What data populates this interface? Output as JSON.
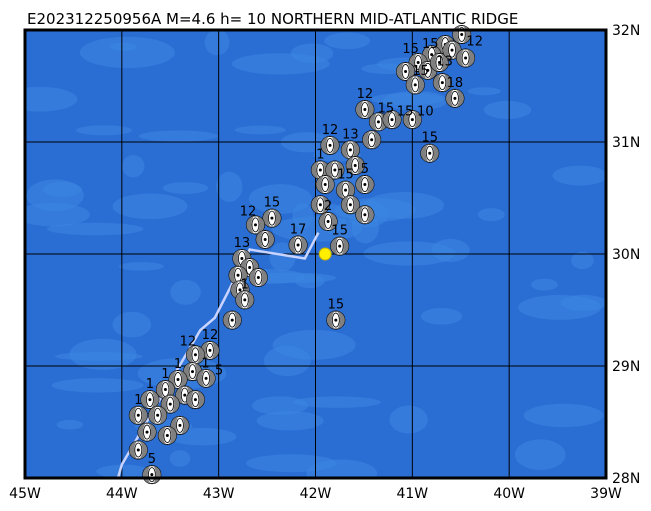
{
  "title": "E202312250956A M=4.6 h= 10 NORTHERN MID-ATLANTIC RIDGE",
  "map": {
    "lon_range": [
      -45,
      -39
    ],
    "lat_range": [
      28,
      32
    ],
    "lon_ticks": [
      {
        "v": -45,
        "label": "45W"
      },
      {
        "v": -44,
        "label": "44W"
      },
      {
        "v": -43,
        "label": "43W"
      },
      {
        "v": -42,
        "label": "42W"
      },
      {
        "v": -41,
        "label": "41W"
      },
      {
        "v": -40,
        "label": "40W"
      },
      {
        "v": -39,
        "label": "39W"
      }
    ],
    "lat_ticks": [
      {
        "v": 32,
        "label": "32N"
      },
      {
        "v": 31,
        "label": "31N"
      },
      {
        "v": 30,
        "label": "30N"
      },
      {
        "v": 29,
        "label": "29N"
      },
      {
        "v": 28,
        "label": "28N"
      }
    ],
    "grid": true,
    "colors": {
      "ocean": "#2a6ed4",
      "ocean_light": "#3d86e2",
      "grid": "#000000",
      "ridge": "#c8d4ff",
      "epicenter": "#ffee00",
      "mechanism_gray": "#808080"
    },
    "epicenter": {
      "lon": -41.9,
      "lat": 30.0
    },
    "ridge_line": [
      [
        -44.04,
        28.0
      ],
      [
        -44.0,
        28.12
      ],
      [
        -43.19,
        29.32
      ],
      [
        -43.04,
        29.43
      ],
      [
        -42.68,
        30.04
      ],
      [
        -42.11,
        29.96
      ],
      [
        -41.97,
        30.19
      ]
    ],
    "mechanisms": [
      {
        "lon": -40.49,
        "lat": 31.96,
        "label": "12"
      },
      {
        "lon": -40.66,
        "lat": 31.87,
        "label": "15"
      },
      {
        "lon": -40.8,
        "lat": 31.78,
        "label": "13"
      },
      {
        "lon": -40.94,
        "lat": 31.71,
        "label": "15"
      },
      {
        "lon": -41.07,
        "lat": 31.63,
        "label": "15"
      },
      {
        "lon": -40.84,
        "lat": 31.64,
        "label": ""
      },
      {
        "lon": -40.72,
        "lat": 31.71,
        "label": ""
      },
      {
        "lon": -40.59,
        "lat": 31.82,
        "label": ""
      },
      {
        "lon": -40.45,
        "lat": 31.75,
        "label": ""
      },
      {
        "lon": -40.97,
        "lat": 31.51,
        "label": ""
      },
      {
        "lon": -40.69,
        "lat": 31.53,
        "label": ""
      },
      {
        "lon": -40.56,
        "lat": 31.39,
        "label": "18"
      },
      {
        "lon": -41.49,
        "lat": 31.29,
        "label": "12"
      },
      {
        "lon": -41.35,
        "lat": 31.18,
        "label": "15"
      },
      {
        "lon": -41.21,
        "lat": 31.2,
        "label": "15"
      },
      {
        "lon": -41.0,
        "lat": 31.2,
        "label": "10"
      },
      {
        "lon": -40.82,
        "lat": 30.9,
        "label": "15"
      },
      {
        "lon": -41.42,
        "lat": 31.02,
        "label": ""
      },
      {
        "lon": -41.85,
        "lat": 30.97,
        "label": "12"
      },
      {
        "lon": -41.64,
        "lat": 30.93,
        "label": "13"
      },
      {
        "lon": -41.95,
        "lat": 30.75,
        "label": "1"
      },
      {
        "lon": -41.8,
        "lat": 30.75,
        "label": ""
      },
      {
        "lon": -41.59,
        "lat": 30.79,
        "label": ""
      },
      {
        "lon": -41.9,
        "lat": 30.62,
        "label": ""
      },
      {
        "lon": -41.69,
        "lat": 30.57,
        "label": "15"
      },
      {
        "lon": -41.49,
        "lat": 30.62,
        "label": "5"
      },
      {
        "lon": -41.95,
        "lat": 30.44,
        "label": ""
      },
      {
        "lon": -41.64,
        "lat": 30.44,
        "label": ""
      },
      {
        "lon": -41.49,
        "lat": 30.35,
        "label": ""
      },
      {
        "lon": -41.87,
        "lat": 30.29,
        "label": "2"
      },
      {
        "lon": -41.75,
        "lat": 30.07,
        "label": "15"
      },
      {
        "lon": -42.18,
        "lat": 30.08,
        "label": "17"
      },
      {
        "lon": -41.79,
        "lat": 29.41,
        "label": "15"
      },
      {
        "lon": -42.45,
        "lat": 30.32,
        "label": "15"
      },
      {
        "lon": -42.62,
        "lat": 30.26,
        "label": "12"
      },
      {
        "lon": -42.52,
        "lat": 30.13,
        "label": ""
      },
      {
        "lon": -42.76,
        "lat": 29.96,
        "label": "13"
      },
      {
        "lon": -42.68,
        "lat": 29.88,
        "label": ""
      },
      {
        "lon": -42.8,
        "lat": 29.81,
        "label": ""
      },
      {
        "lon": -42.59,
        "lat": 29.79,
        "label": ""
      },
      {
        "lon": -42.78,
        "lat": 29.68,
        "label": ""
      },
      {
        "lon": -42.73,
        "lat": 29.59,
        "label": "1"
      },
      {
        "lon": -42.86,
        "lat": 29.41,
        "label": ""
      },
      {
        "lon": -43.09,
        "lat": 29.14,
        "label": "12"
      },
      {
        "lon": -43.24,
        "lat": 29.1,
        "label": "12"
      },
      {
        "lon": -43.27,
        "lat": 28.95,
        "label": "1"
      },
      {
        "lon": -43.42,
        "lat": 28.88,
        "label": "1"
      },
      {
        "lon": -43.13,
        "lat": 28.89,
        "label": "5"
      },
      {
        "lon": -43.55,
        "lat": 28.79,
        "label": "1"
      },
      {
        "lon": -43.35,
        "lat": 28.74,
        "label": ""
      },
      {
        "lon": -43.71,
        "lat": 28.7,
        "label": "1"
      },
      {
        "lon": -43.5,
        "lat": 28.66,
        "label": ""
      },
      {
        "lon": -43.24,
        "lat": 28.7,
        "label": ""
      },
      {
        "lon": -43.83,
        "lat": 28.56,
        "label": "1"
      },
      {
        "lon": -43.63,
        "lat": 28.56,
        "label": ""
      },
      {
        "lon": -43.4,
        "lat": 28.47,
        "label": ""
      },
      {
        "lon": -43.74,
        "lat": 28.41,
        "label": ""
      },
      {
        "lon": -43.53,
        "lat": 28.38,
        "label": ""
      },
      {
        "lon": -43.83,
        "lat": 28.25,
        "label": ""
      },
      {
        "lon": -43.69,
        "lat": 28.03,
        "label": "5"
      }
    ]
  }
}
